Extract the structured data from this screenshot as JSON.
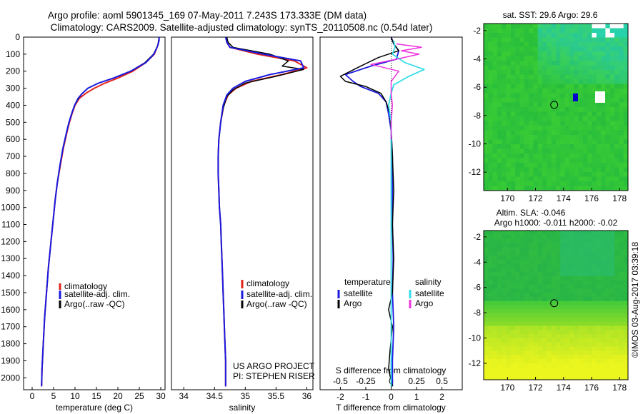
{
  "title_line1": "Argo profile: aoml 5901345_169 07-May-2011 7.243S 173.333E (DM data)",
  "title_line2": "Climatology: CARS2009. Satellite-adjusted climatology: synTS_20110508.nc (0.54d later)",
  "side_text": "©IMOS 03-Aug-2017 03:39:18",
  "colors": {
    "clim": "#e2231a",
    "sat": "#1a1ae0",
    "argo": "#000000",
    "sat_s": "#33dde8",
    "argo_s": "#ee33dd"
  },
  "credit": {
    "line1": "US ARGO PROJECT",
    "line2": "PI: STEPHEN RISER"
  },
  "legend_profiles": [
    "climatology",
    "satellite-adj. clim.",
    "Argo(..raw -QC)"
  ],
  "legend_diff": {
    "t_head": "temperature",
    "s_head": "salinity",
    "satellite": "satellite",
    "argo": "Argo"
  },
  "sst_title": "sat. SST: 29.6 Argo: 29.6",
  "sla_title1": "Altim. SLA: -0.046",
  "sla_title2": "Argo h1000: -0.011 h2000: -0.02",
  "chart_data": [
    {
      "type": "line",
      "xlabel": "temperature (deg C)",
      "ylabel": "",
      "xlim": [
        -2,
        31
      ],
      "ylim": [
        2070,
        0
      ],
      "xticks": [
        0,
        5,
        10,
        15,
        20,
        25,
        30
      ],
      "yticks": [
        0,
        100,
        200,
        300,
        400,
        500,
        600,
        700,
        800,
        900,
        1000,
        1100,
        1200,
        1300,
        1400,
        1500,
        1600,
        1700,
        1800,
        1900,
        2000
      ],
      "series": [
        {
          "name": "climatology",
          "x": [
            29.6,
            29.6,
            29.3,
            28.5,
            26.5,
            23.5,
            20,
            17,
            14.5,
            12.5,
            11,
            10,
            9.3,
            8.7,
            8.2,
            7.3,
            6.6,
            5.9,
            5.4,
            5,
            4.6,
            4.2,
            3.8,
            3.5,
            3.2,
            2.9,
            2.7,
            2.5,
            2.3,
            2.2
          ],
          "y": [
            0,
            20,
            50,
            100,
            150,
            200,
            240,
            270,
            300,
            330,
            360,
            400,
            450,
            500,
            550,
            650,
            750,
            850,
            950,
            1050,
            1150,
            1250,
            1350,
            1450,
            1550,
            1650,
            1750,
            1850,
            1950,
            2050
          ]
        },
        {
          "name": "satellite-adj. clim.",
          "x": [
            29.6,
            29.6,
            29.3,
            28.4,
            26.5,
            23,
            19,
            15.5,
            13,
            11.7,
            10.7,
            9.9,
            9.2,
            8.6,
            8.1,
            7.2,
            6.5,
            5.9,
            5.4,
            5,
            4.6,
            4.2,
            3.8,
            3.5,
            3.2,
            2.9,
            2.7,
            2.5,
            2.3,
            2.2
          ],
          "y": [
            0,
            20,
            50,
            100,
            150,
            200,
            240,
            270,
            300,
            330,
            360,
            400,
            450,
            500,
            550,
            650,
            750,
            850,
            950,
            1050,
            1150,
            1250,
            1350,
            1450,
            1550,
            1650,
            1750,
            1850,
            1950,
            2050
          ]
        },
        {
          "name": "Argo(..raw -QC)",
          "x": [
            29.6,
            29.5,
            29.3,
            28.3,
            26.3,
            23,
            19,
            15.5,
            13,
            11.7,
            10.8,
            9.9,
            9.2,
            8.6,
            8.1,
            7.2,
            6.5,
            5.9,
            5.4,
            5,
            4.6,
            4.2,
            3.8,
            3.5,
            3.2,
            2.9,
            2.7,
            2.5,
            2.3,
            2.2
          ],
          "y": [
            0,
            20,
            50,
            100,
            150,
            200,
            240,
            270,
            300,
            330,
            360,
            400,
            450,
            500,
            550,
            650,
            750,
            850,
            950,
            1050,
            1150,
            1250,
            1350,
            1450,
            1550,
            1650,
            1750,
            1850,
            1950,
            2050
          ]
        }
      ]
    },
    {
      "type": "line",
      "xlabel": "salinity",
      "ylabel": "",
      "xlim": [
        33.8,
        36.1
      ],
      "ylim": [
        2070,
        0
      ],
      "xticks": [
        34,
        34.5,
        35,
        35.5,
        36
      ],
      "series": [
        {
          "name": "climatology",
          "x": [
            34.7,
            34.7,
            34.75,
            35.2,
            35.8,
            36.0,
            35.6,
            35.1,
            34.85,
            34.72,
            34.65,
            34.6,
            34.57,
            34.56,
            34.56,
            34.57,
            34.58,
            34.6,
            34.61,
            34.62,
            34.63,
            34.64,
            34.65,
            34.66,
            34.67,
            34.68,
            34.68
          ],
          "y": [
            0,
            30,
            60,
            100,
            140,
            180,
            220,
            260,
            300,
            340,
            400,
            500,
            600,
            700,
            800,
            900,
            1000,
            1100,
            1200,
            1300,
            1400,
            1500,
            1600,
            1700,
            1800,
            1900,
            2050
          ]
        },
        {
          "name": "satellite-adj. clim.",
          "x": [
            34.68,
            34.7,
            34.75,
            35.3,
            35.9,
            35.95,
            35.4,
            35.0,
            34.8,
            34.7,
            34.64,
            34.6,
            34.57,
            34.56,
            34.56,
            34.57,
            34.58,
            34.6,
            34.61,
            34.62,
            34.63,
            34.64,
            34.65,
            34.66,
            34.67,
            34.68,
            34.68
          ],
          "y": [
            0,
            30,
            60,
            100,
            140,
            180,
            220,
            260,
            300,
            340,
            400,
            500,
            600,
            700,
            800,
            900,
            1000,
            1100,
            1200,
            1300,
            1400,
            1500,
            1600,
            1700,
            1800,
            1900,
            2050
          ]
        },
        {
          "name": "Argo(..raw -QC)",
          "x": [
            34.7,
            34.72,
            34.8,
            35.4,
            35.7,
            35.6,
            35.95,
            35.5,
            35.0,
            34.8,
            34.7,
            34.64,
            34.6,
            34.57,
            34.56,
            34.56,
            34.58,
            34.6,
            34.61,
            34.62,
            34.63,
            34.64,
            34.65,
            34.66,
            34.67,
            34.68,
            34.68
          ],
          "y": [
            0,
            30,
            60,
            100,
            140,
            170,
            190,
            230,
            270,
            310,
            350,
            420,
            500,
            600,
            700,
            800,
            1000,
            1100,
            1200,
            1300,
            1400,
            1500,
            1600,
            1700,
            1800,
            1900,
            2050
          ]
        }
      ]
    },
    {
      "type": "line",
      "xlabel": "T difference from climatology",
      "xlabel_top": "S difference from climatology",
      "xlim": [
        -2.8,
        2.8
      ],
      "ylim": [
        2070,
        0
      ],
      "xticks": [
        -2,
        -1,
        0,
        1,
        2
      ],
      "xticks_top": [
        -0.5,
        -0.25,
        0,
        0.25,
        0.5
      ],
      "series": [
        {
          "name": "temperature satellite",
          "x": [
            0,
            0.1,
            0.3,
            0.2,
            -0.8,
            -1.8,
            -1.5,
            -1.2,
            -0.5,
            -0.2,
            -0.1,
            0,
            0.05,
            0.05,
            0.05,
            0.08,
            0.05,
            0.1,
            0.05,
            0.05
          ],
          "y": [
            0,
            40,
            80,
            130,
            170,
            220,
            260,
            290,
            330,
            380,
            450,
            550,
            700,
            900,
            1100,
            1300,
            1500,
            1700,
            1900,
            2050
          ]
        },
        {
          "name": "temperature Argo",
          "x": [
            0,
            0.1,
            0.3,
            -0.5,
            -1.2,
            -2.0,
            -1.8,
            -1.0,
            -0.4,
            -0.2,
            -0.05,
            0,
            0.05,
            0.1,
            0.05,
            0.1,
            0.05,
            -0.1,
            0.05,
            -0.05,
            -0.1,
            0.05
          ],
          "y": [
            0,
            40,
            80,
            120,
            170,
            230,
            260,
            290,
            330,
            380,
            450,
            550,
            700,
            900,
            1100,
            1300,
            1500,
            1600,
            1700,
            1850,
            1950,
            2050
          ]
        },
        {
          "name": "salinity satellite",
          "x": [
            0.1,
            0.15,
            0.05,
            0.55,
            1.3,
            0.7,
            0.1,
            0,
            -0.1,
            0,
            0,
            0,
            0,
            0,
            0,
            0,
            0,
            0
          ],
          "y": [
            20,
            60,
            100,
            150,
            190,
            230,
            280,
            330,
            400,
            500,
            600,
            800,
            1000,
            1200,
            1400,
            1600,
            1800,
            2050
          ]
        },
        {
          "name": "salinity Argo",
          "x": [
            0.2,
            1.2,
            0.4,
            1.1,
            0.2,
            -0.8,
            0.3,
            0,
            0,
            0.05,
            0,
            0
          ],
          "y": [
            40,
            60,
            80,
            100,
            130,
            160,
            200,
            260,
            330,
            400,
            500,
            600
          ]
        }
      ]
    },
    {
      "type": "heatmap",
      "title": "sat. SST: 29.6 Argo: 29.6",
      "xlim": [
        168.3,
        178.6
      ],
      "ylim": [
        -13.3,
        -1.5
      ],
      "xticks": [
        170,
        172,
        174,
        176,
        178
      ],
      "yticks": [
        -2,
        -4,
        -6,
        -8,
        -10,
        -12
      ],
      "marker": {
        "x": 173.333,
        "y": -7.243
      }
    },
    {
      "type": "heatmap",
      "title": "Altim. SLA: -0.046 / Argo h1000: -0.011 h2000: -0.02",
      "xlim": [
        168.3,
        178.6
      ],
      "ylim": [
        -13.3,
        -1.5
      ],
      "xticks": [
        170,
        172,
        174,
        176,
        178
      ],
      "yticks": [
        -2,
        -4,
        -6,
        -8,
        -10,
        -12
      ],
      "marker": {
        "x": 173.333,
        "y": -7.243
      }
    }
  ]
}
